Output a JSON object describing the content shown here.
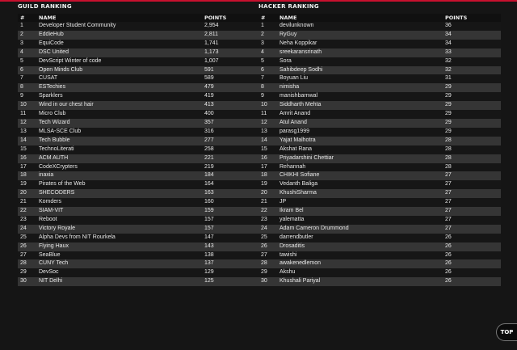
{
  "guild": {
    "title": "GUILD RANKING",
    "headers": {
      "rank": "#",
      "name": "NAME",
      "points": "POINTS"
    },
    "rows": [
      {
        "rank": "1",
        "name": "Developer Student Community",
        "points": "2,954"
      },
      {
        "rank": "2",
        "name": "EddieHub",
        "points": "2,811"
      },
      {
        "rank": "3",
        "name": "EquiCode",
        "points": "1,741"
      },
      {
        "rank": "4",
        "name": "DSC United",
        "points": "1,173"
      },
      {
        "rank": "5",
        "name": "DevScript Winter of code",
        "points": "1,007"
      },
      {
        "rank": "6",
        "name": "Open Minds Club",
        "points": "591"
      },
      {
        "rank": "7",
        "name": "CUSAT",
        "points": "589"
      },
      {
        "rank": "8",
        "name": "ESTechies",
        "points": "479"
      },
      {
        "rank": "9",
        "name": "Sparklers",
        "points": "419"
      },
      {
        "rank": "10",
        "name": "Wind in our chest hair",
        "points": "413"
      },
      {
        "rank": "11",
        "name": "Micro Club",
        "points": "400"
      },
      {
        "rank": "12",
        "name": "Tech Wizard",
        "points": "357"
      },
      {
        "rank": "13",
        "name": "MLSA-SCE Club",
        "points": "316"
      },
      {
        "rank": "14",
        "name": "Tech Bubble",
        "points": "277"
      },
      {
        "rank": "15",
        "name": "TechnoLiterati",
        "points": "258"
      },
      {
        "rank": "16",
        "name": "ACM AUTH",
        "points": "221"
      },
      {
        "rank": "17",
        "name": "CodeXCrypters",
        "points": "219"
      },
      {
        "rank": "18",
        "name": "inaxia",
        "points": "184"
      },
      {
        "rank": "19",
        "name": "Pirates of the Web",
        "points": "164"
      },
      {
        "rank": "20",
        "name": "SHECODERS",
        "points": "163"
      },
      {
        "rank": "21",
        "name": "Komders",
        "points": "160"
      },
      {
        "rank": "22",
        "name": "SIAM-VIT",
        "points": "159"
      },
      {
        "rank": "23",
        "name": "Reboot",
        "points": "157"
      },
      {
        "rank": "24",
        "name": "Victory Royale",
        "points": "157"
      },
      {
        "rank": "25",
        "name": "Alpha Devs from NIT Rourkela",
        "points": "147"
      },
      {
        "rank": "26",
        "name": "Flying Haux",
        "points": "143"
      },
      {
        "rank": "27",
        "name": "SeaBlue",
        "points": "138"
      },
      {
        "rank": "28",
        "name": "CUNY Tech",
        "points": "137"
      },
      {
        "rank": "29",
        "name": "DevSoc",
        "points": "129"
      },
      {
        "rank": "30",
        "name": "NIT Delhi",
        "points": "125"
      }
    ]
  },
  "hacker": {
    "title": "HACKER RANKING",
    "headers": {
      "rank": "#",
      "name": "NAME",
      "points": "POINTS"
    },
    "rows": [
      {
        "rank": "1",
        "name": "devilunknown",
        "points": "36"
      },
      {
        "rank": "2",
        "name": "RyGuy",
        "points": "34"
      },
      {
        "rank": "3",
        "name": "Neha Koppikar",
        "points": "34"
      },
      {
        "rank": "4",
        "name": "sreekaransrinath",
        "points": "33"
      },
      {
        "rank": "5",
        "name": "Sora",
        "points": "32"
      },
      {
        "rank": "6",
        "name": "Sahibdeep Sodhi",
        "points": "32"
      },
      {
        "rank": "7",
        "name": "Boyuan Liu",
        "points": "31"
      },
      {
        "rank": "8",
        "name": "nimisha",
        "points": "29"
      },
      {
        "rank": "9",
        "name": "manishbarnwal",
        "points": "29"
      },
      {
        "rank": "10",
        "name": "Siddharth Mehta",
        "points": "29"
      },
      {
        "rank": "11",
        "name": "Amrit Anand",
        "points": "29"
      },
      {
        "rank": "12",
        "name": "Atul Anand",
        "points": "29"
      },
      {
        "rank": "13",
        "name": "parasg1999",
        "points": "29"
      },
      {
        "rank": "14",
        "name": "Yajat Malhotra",
        "points": "28"
      },
      {
        "rank": "15",
        "name": "Akshat Rana",
        "points": "28"
      },
      {
        "rank": "16",
        "name": "Priyadarshini Chettiar",
        "points": "28"
      },
      {
        "rank": "17",
        "name": "Rehannah",
        "points": "28"
      },
      {
        "rank": "18",
        "name": "CHIKHI Sofiane",
        "points": "27"
      },
      {
        "rank": "19",
        "name": "Vedanth Baliga",
        "points": "27"
      },
      {
        "rank": "20",
        "name": "KhushiSharma",
        "points": "27"
      },
      {
        "rank": "21",
        "name": "JP",
        "points": "27"
      },
      {
        "rank": "22",
        "name": "Ikram Bel",
        "points": "27"
      },
      {
        "rank": "23",
        "name": "yalematta",
        "points": "27"
      },
      {
        "rank": "24",
        "name": "Adam Cameron Drummond",
        "points": "27"
      },
      {
        "rank": "25",
        "name": "darrendbutler",
        "points": "26"
      },
      {
        "rank": "26",
        "name": "Drosaditis",
        "points": "26"
      },
      {
        "rank": "27",
        "name": "tawishi",
        "points": "26"
      },
      {
        "rank": "28",
        "name": "awakenedlemon",
        "points": "26"
      },
      {
        "rank": "29",
        "name": "Akshu",
        "points": "26"
      },
      {
        "rank": "30",
        "name": "Khushali Pariyal",
        "points": "26"
      }
    ]
  },
  "top_button": {
    "label": "TOP"
  },
  "colors": {
    "accent": "#c8102e",
    "row_dark": "#161616",
    "row_light": "#353535"
  }
}
